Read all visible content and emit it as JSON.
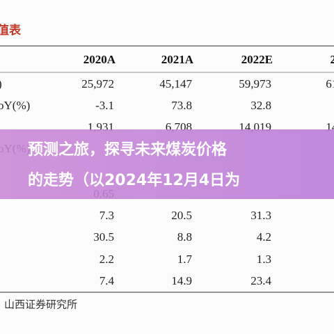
{
  "header": {
    "title": "值表",
    "columns": [
      "2020A",
      "2021A",
      "2022E",
      "202"
    ]
  },
  "table": {
    "rows": [
      {
        "label": ")",
        "cells": [
          "25,972",
          "45,147",
          "59,973",
          "61,8"
        ]
      },
      {
        "label": "oY(%)",
        "cells": [
          "-3.1",
          "73.8",
          "32.8"
        ]
      },
      {
        "cells": [
          "1,931",
          "6,708",
          "14,019",
          "14,2"
        ]
      },
      {
        "label": "oY(%)",
        "cells": []
      },
      {
        "cells": []
      },
      {
        "cells": [
          "0.65"
        ]
      },
      {
        "cells": [
          "7.3",
          "20.5",
          "31.3",
          "2"
        ]
      },
      {
        "cells": [
          "30.5",
          "8.8",
          "4.2",
          "3"
        ]
      },
      {
        "cells": [
          "2.2",
          "1.7",
          "1.3",
          "1"
        ]
      },
      {
        "cells": [
          "7.4",
          "14.9",
          "23.4",
          "1"
        ]
      }
    ]
  },
  "source": "山西证券研究所",
  "overlay": {
    "lines": [
      "预测之旅，探寻未来煤炭价格",
      "的走势（以2024年12月4日为"
    ]
  }
}
